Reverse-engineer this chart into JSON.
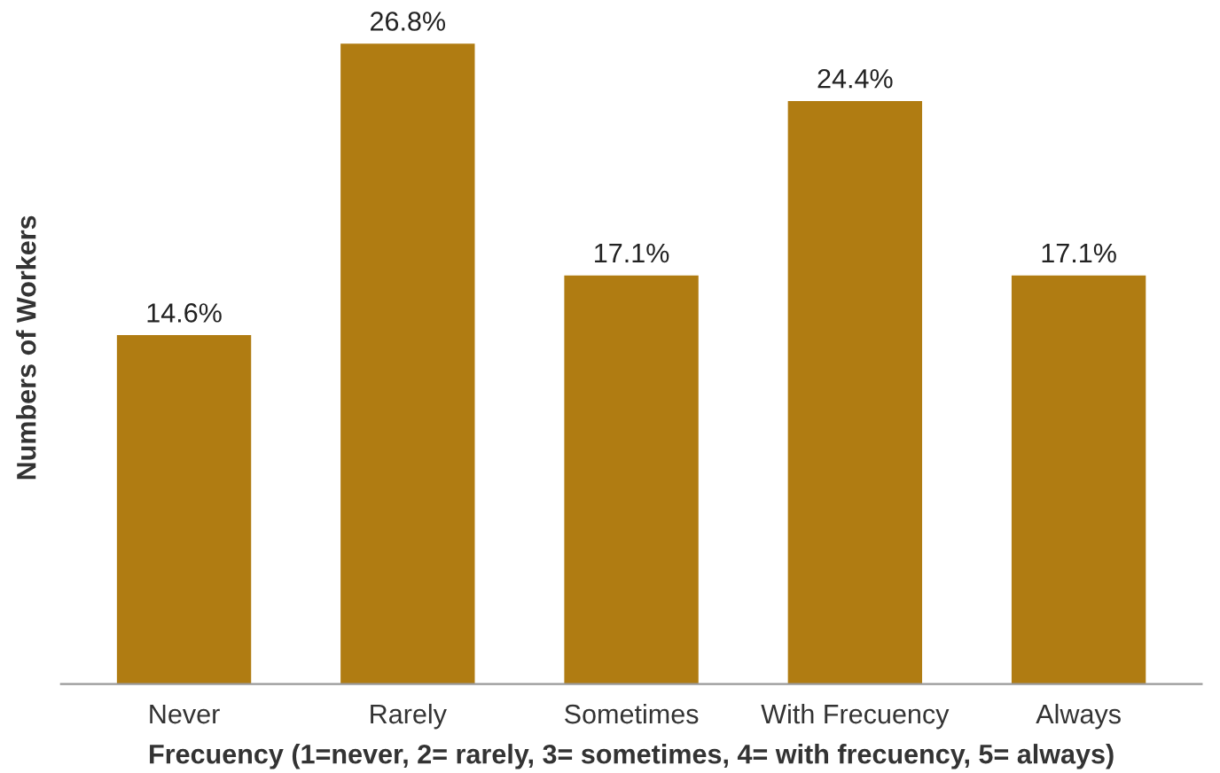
{
  "chart_data": {
    "type": "bar",
    "categories": [
      "Never",
      "Rarely",
      "Sometimes",
      "With Frecuency",
      "Always"
    ],
    "values": [
      14.6,
      26.8,
      17.1,
      24.4,
      17.1
    ],
    "value_labels": [
      "14.6%",
      "26.8%",
      "17.1%",
      "24.4%",
      "17.1%"
    ],
    "color": "#b07c12",
    "xlabel": "Frecuency (1=never, 2= rarely, 3= sometimes, 4= with frecuency, 5= always)",
    "ylabel": "Numbers of Workers",
    "grid": false,
    "legend": false
  }
}
